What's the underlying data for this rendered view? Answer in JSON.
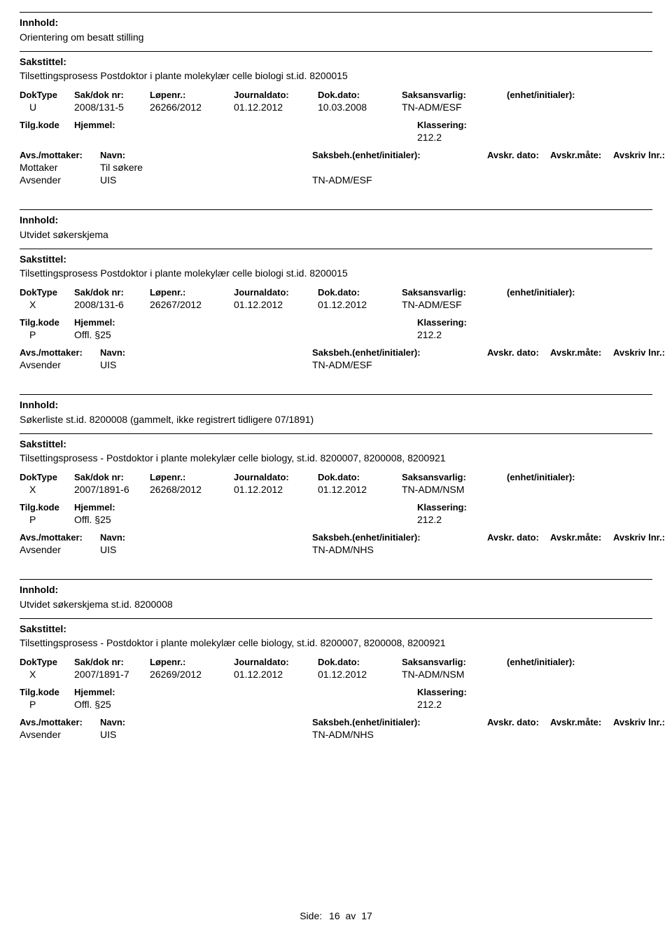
{
  "labels": {
    "innhold": "Innhold:",
    "sakstittel": "Sakstittel:",
    "dokType": "DokType",
    "sakDokNr": "Sak/dok nr:",
    "lopeNr": "Løpenr.:",
    "journaldato": "Journaldato:",
    "dokDato": "Dok.dato:",
    "saksansvarlig": "Saksansvarlig:",
    "enhetInitialer": "(enhet/initialer):",
    "tilgKode": "Tilg.kode",
    "hjemmel": "Hjemmel:",
    "klassering": "Klassering:",
    "avsMottaker": "Avs./mottaker:",
    "navn": "Navn:",
    "saksbeh": "Saksbeh.(enhet/initialer):",
    "avskrDato": "Avskr. dato:",
    "avskrMate": "Avskr.måte:",
    "avskrivLnr": "Avskriv lnr.:",
    "mottaker": "Mottaker",
    "avsender": "Avsender",
    "side": "Side:",
    "av": "av"
  },
  "records": [
    {
      "innhold": "Orientering om besatt stilling",
      "sakstittel": "Tilsettingsprosess Postdoktor i plante molekylær celle biologi st.id. 8200015",
      "dokType": "U",
      "sakDokNr": "2008/131-5",
      "lopeNr": "26266/2012",
      "journaldato": "01.12.2012",
      "dokDato": "10.03.2008",
      "saksansvarlig": "TN-ADM/ESF",
      "tilgKode": "",
      "hjemmel": "",
      "klassering": "212.2",
      "parties": [
        {
          "role": "Mottaker",
          "navn": "Til søkere",
          "saksbeh": ""
        },
        {
          "role": "Avsender",
          "navn": "UIS",
          "saksbeh": "TN-ADM/ESF"
        }
      ]
    },
    {
      "innhold": "Utvidet søkerskjema",
      "sakstittel": "Tilsettingsprosess Postdoktor i plante molekylær celle biologi st.id. 8200015",
      "dokType": "X",
      "sakDokNr": "2008/131-6",
      "lopeNr": "26267/2012",
      "journaldato": "01.12.2012",
      "dokDato": "01.12.2012",
      "saksansvarlig": "TN-ADM/ESF",
      "tilgKode": "P",
      "hjemmel": "Offl. §25",
      "klassering": "212.2",
      "parties": [
        {
          "role": "Avsender",
          "navn": "UIS",
          "saksbeh": "TN-ADM/ESF"
        }
      ]
    },
    {
      "innhold": "Søkerliste st.id. 8200008 (gammelt, ikke registrert tidligere 07/1891)",
      "sakstittel": "Tilsettingsprosess - Postdoktor i plante molekylær celle biology, st.id. 8200007, 8200008, 8200921",
      "dokType": "X",
      "sakDokNr": "2007/1891-6",
      "lopeNr": "26268/2012",
      "journaldato": "01.12.2012",
      "dokDato": "01.12.2012",
      "saksansvarlig": "TN-ADM/NSM",
      "tilgKode": "P",
      "hjemmel": "Offl. §25",
      "klassering": "212.2",
      "parties": [
        {
          "role": "Avsender",
          "navn": "UIS",
          "saksbeh": "TN-ADM/NHS"
        }
      ]
    },
    {
      "innhold": "Utvidet søkerskjema st.id. 8200008",
      "sakstittel": "Tilsettingsprosess - Postdoktor i plante molekylær celle biology, st.id. 8200007, 8200008, 8200921",
      "dokType": "X",
      "sakDokNr": "2007/1891-7",
      "lopeNr": "26269/2012",
      "journaldato": "01.12.2012",
      "dokDato": "01.12.2012",
      "saksansvarlig": "TN-ADM/NSM",
      "tilgKode": "P",
      "hjemmel": "Offl. §25",
      "klassering": "212.2",
      "parties": [
        {
          "role": "Avsender",
          "navn": "UIS",
          "saksbeh": "TN-ADM/NHS"
        }
      ]
    }
  ],
  "footer": {
    "page": "16",
    "total": "17"
  }
}
